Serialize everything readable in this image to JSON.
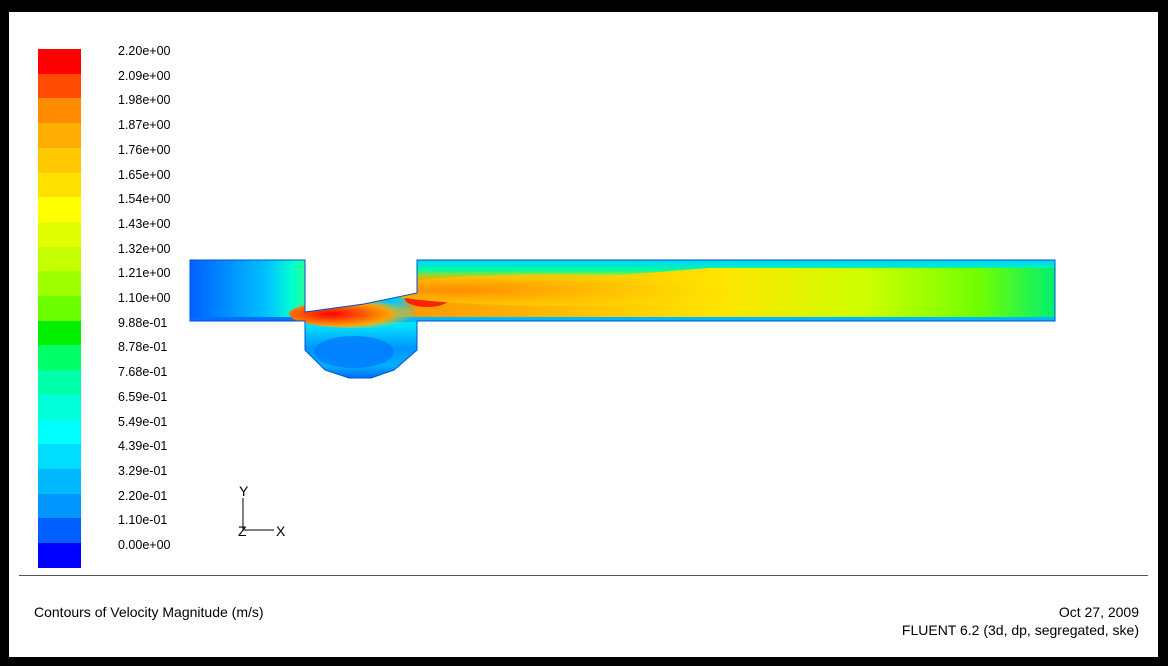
{
  "colorbar": {
    "labels": [
      "2.20e+00",
      "2.09e+00",
      "1.98e+00",
      "1.87e+00",
      "1.76e+00",
      "1.65e+00",
      "1.54e+00",
      "1.43e+00",
      "1.32e+00",
      "1.21e+00",
      "1.10e+00",
      "9.88e-01",
      "8.78e-01",
      "7.68e-01",
      "6.59e-01",
      "5.49e-01",
      "4.39e-01",
      "3.29e-01",
      "2.20e-01",
      "1.10e-01",
      "0.00e+00"
    ],
    "colors": [
      "#ff0000",
      "#ff4a00",
      "#ff8c00",
      "#ffad00",
      "#ffc800",
      "#ffe000",
      "#ffff00",
      "#e1ff00",
      "#c3ff00",
      "#9dff00",
      "#6bff00",
      "#00f000",
      "#00ff66",
      "#00ffaa",
      "#00ffd8",
      "#00ffff",
      "#00ddff",
      "#00b9ff",
      "#0095ff",
      "#0060ff",
      "#0000ff"
    ]
  },
  "axes": {
    "y_label": "Y",
    "z_label": "Z",
    "x_label": "X"
  },
  "caption": {
    "title": "Contours of Velocity Magnitude (m/s)",
    "date": "Oct 27, 2009",
    "software": "FLUENT 6.2 (3d, dp, segregated, ske)"
  }
}
